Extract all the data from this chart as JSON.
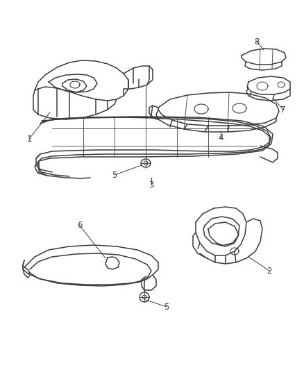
{
  "bg_color": "#ffffff",
  "line_color": "#3a3a3a",
  "label_color": "#3a3a3a",
  "fig_width": 4.38,
  "fig_height": 5.33,
  "dpi": 100
}
